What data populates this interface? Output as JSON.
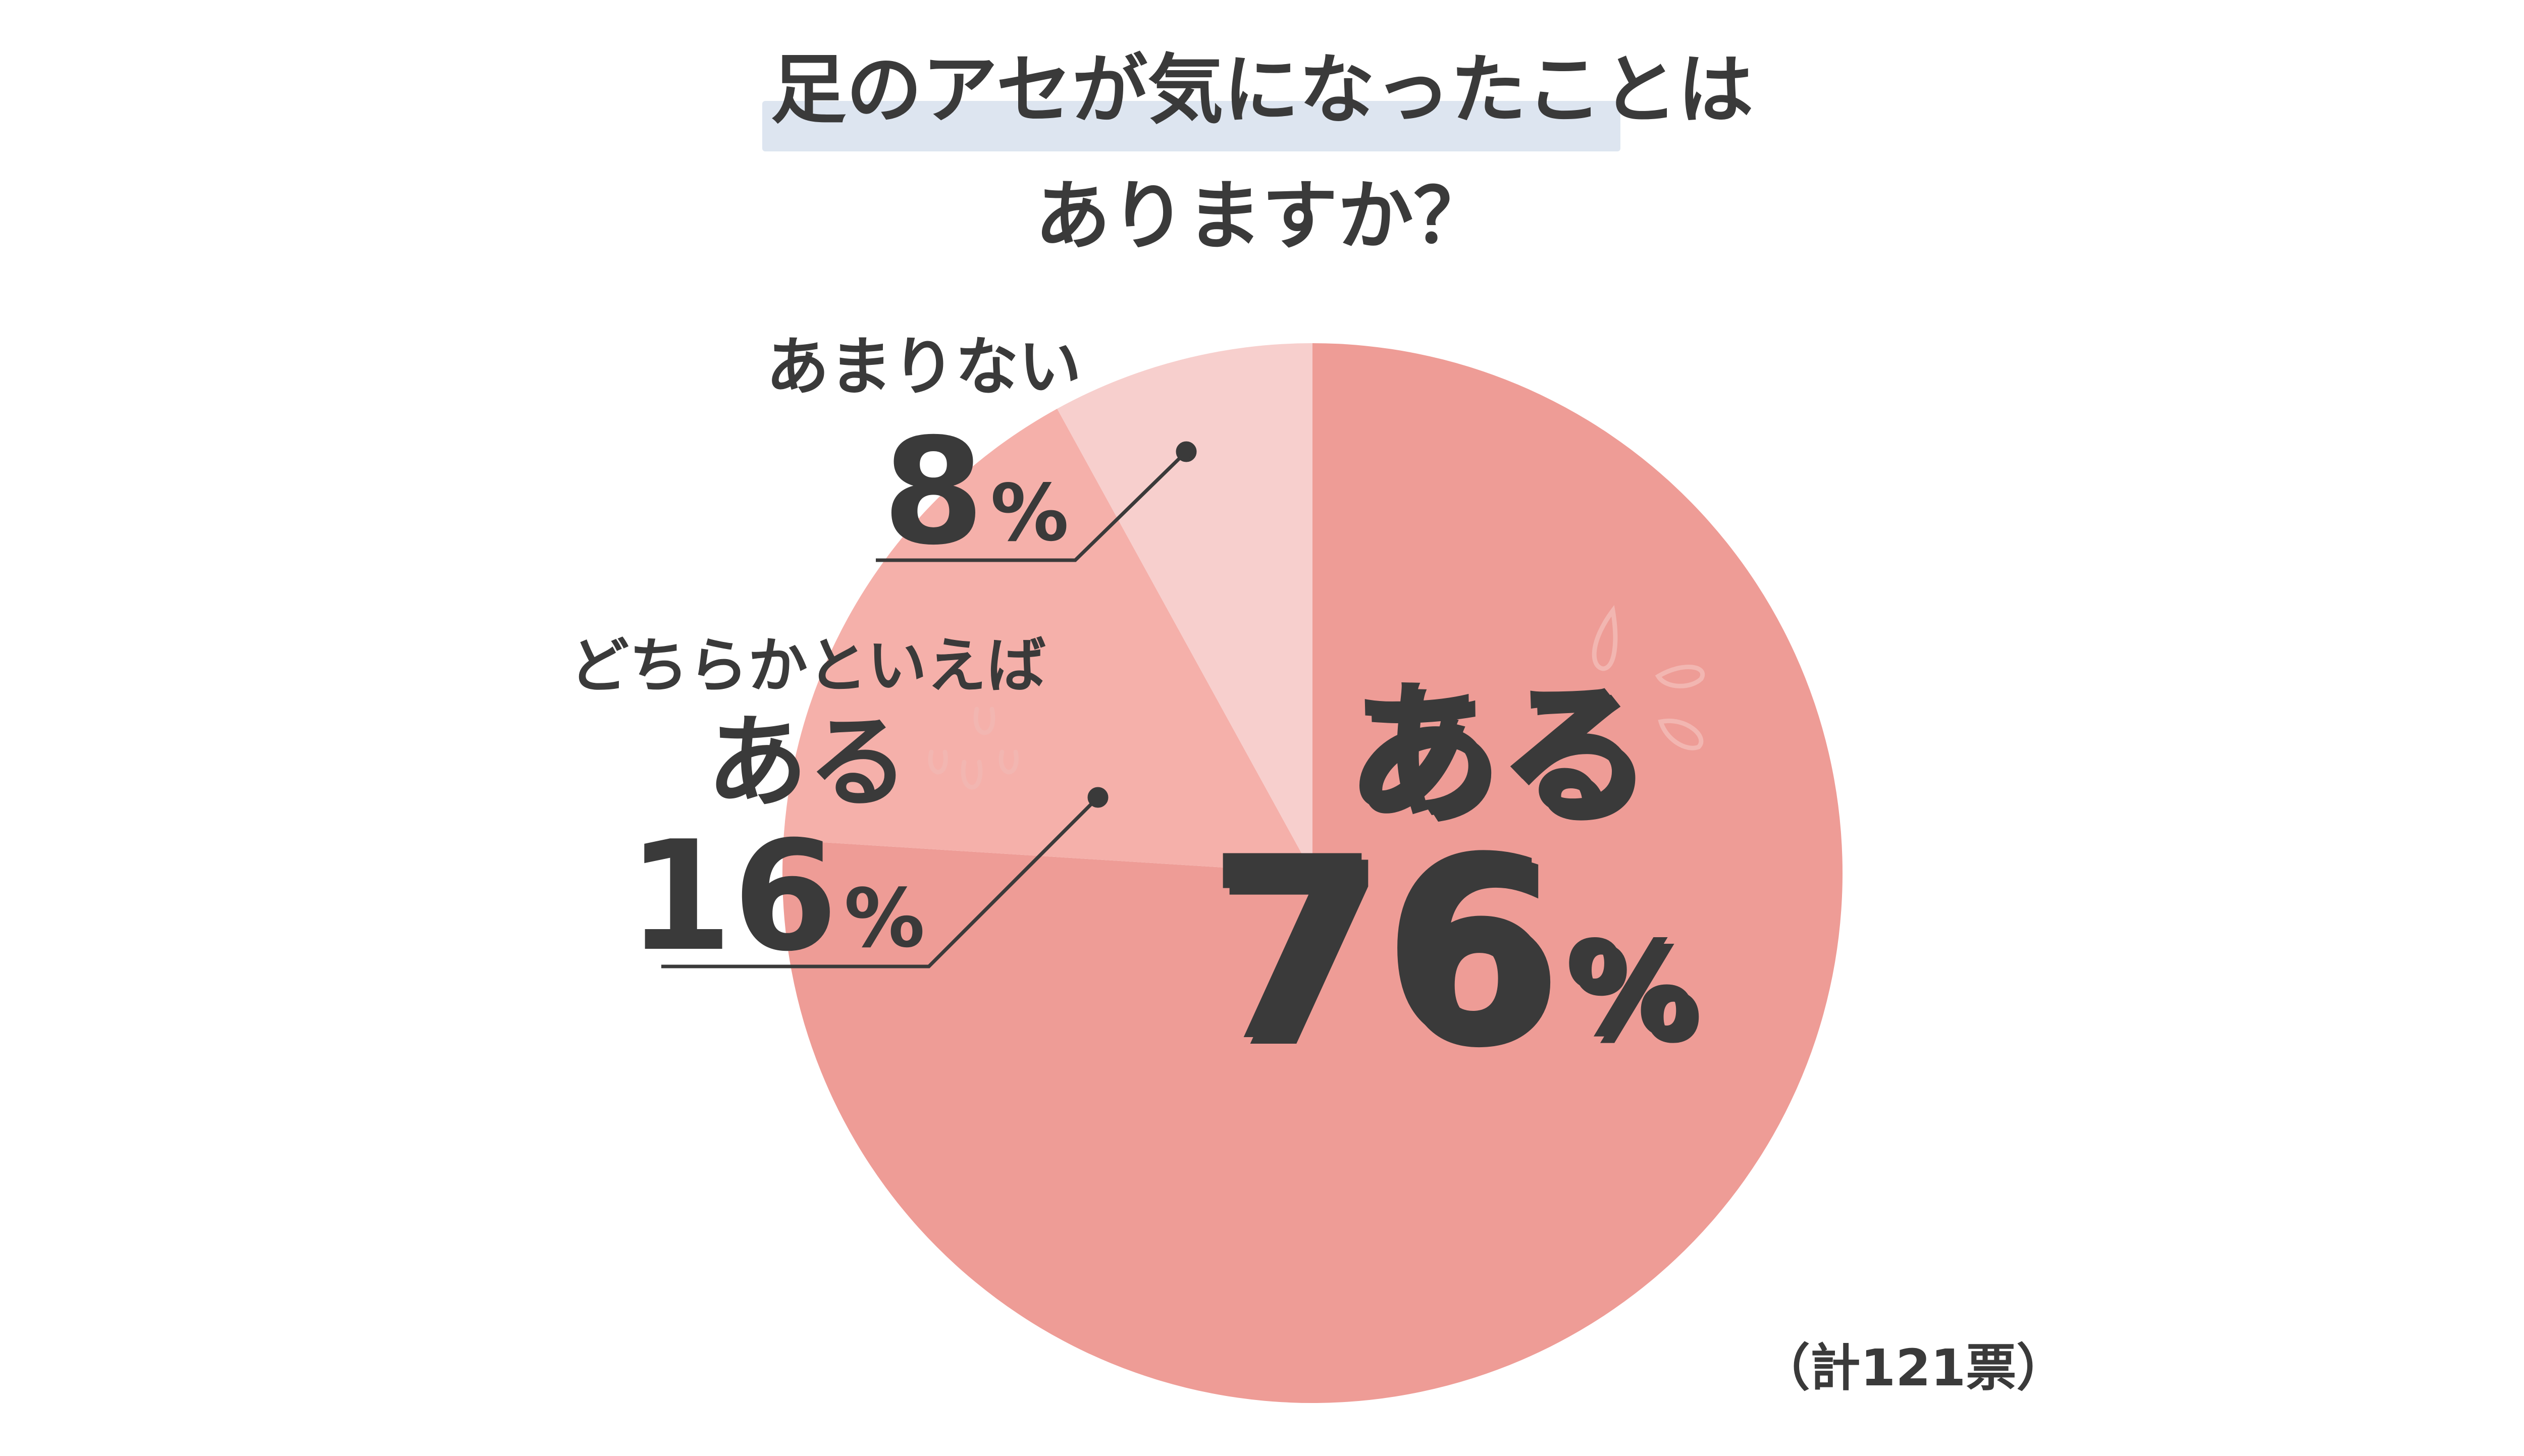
{
  "chart_data": {
    "type": "pie",
    "title_line1": "足のアセが気になったことは",
    "title_line2": "ありますか？",
    "total_note": "（計121票）",
    "slices": [
      {
        "label": "ある",
        "value": 76,
        "value_text": "76",
        "unit": "%",
        "color": "#ee9c96"
      },
      {
        "label_line1": "どちらかといえば",
        "label_line2": "ある",
        "value": 16,
        "value_text": "16",
        "unit": "%",
        "color": "#f5b0aa"
      },
      {
        "label": "あまりない",
        "value": 8,
        "value_text": "8",
        "unit": "%",
        "color": "#f7cfcd"
      }
    ]
  },
  "colors": {
    "text": "#3a3a3a",
    "highlight": "#dde5f0",
    "leader": "#3a3a3a",
    "shadow": "#f2b6b1",
    "drops": "#f2b6b1"
  }
}
